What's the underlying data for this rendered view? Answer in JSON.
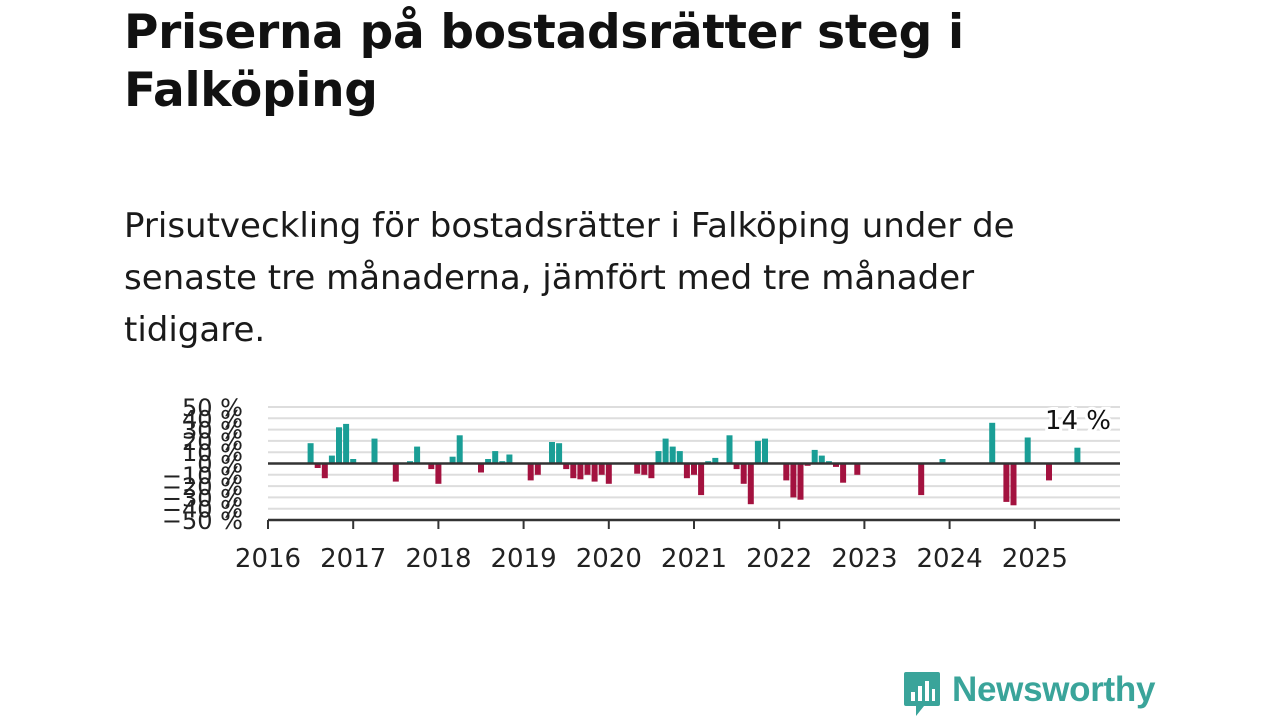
{
  "title": "Priserna på bostadsrätter steg i Falköping",
  "subtitle": "Prisutveckling för bostadsrätter i Falköping under de senaste tre månaderna, jämfört med tre månader tidigare.",
  "logo": {
    "text": "Newsworthy",
    "icon": "chart-bubble-icon",
    "color": "#3aa49a"
  },
  "colors": {
    "positive": "#1a9e96",
    "negative": "#a3123f",
    "baseline": "#333333",
    "grid": "#dddddd"
  },
  "chart_data": {
    "type": "bar",
    "title": "",
    "xlabel": "",
    "ylabel": "",
    "ylim": [
      -50,
      50
    ],
    "grid": true,
    "y_ticks": [
      "50 %",
      "40 %",
      "30 %",
      "20 %",
      "10 %",
      "0 %",
      "−10 %",
      "−20 %",
      "−30 %",
      "−40 %",
      "−50 %"
    ],
    "y_tick_values": [
      50,
      40,
      30,
      20,
      10,
      0,
      -10,
      -20,
      -30,
      -40,
      -50
    ],
    "x_ticks": [
      "2016",
      "2017",
      "2018",
      "2019",
      "2020",
      "2021",
      "2022",
      "2023",
      "2024",
      "2025"
    ],
    "x_tick_values": [
      2016,
      2017,
      2018,
      2019,
      2020,
      2021,
      2022,
      2023,
      2024,
      2025
    ],
    "xlim": [
      2016,
      2026
    ],
    "last_label": "14 %",
    "series": [
      {
        "x": [
          2016.5,
          2016.583,
          2016.667,
          2016.75,
          2016.833,
          2016.917,
          2017.0,
          2017.25,
          2017.5,
          2017.667,
          2017.75,
          2017.917,
          2018.0,
          2018.167,
          2018.25,
          2018.5,
          2018.583,
          2018.667,
          2018.75,
          2018.833,
          2019.083,
          2019.167,
          2019.333,
          2019.417,
          2019.5,
          2019.583,
          2019.667,
          2019.75,
          2019.833,
          2019.917,
          2020.0,
          2020.333,
          2020.417,
          2020.5,
          2020.583,
          2020.667,
          2020.75,
          2020.833,
          2020.917,
          2021.0,
          2021.083,
          2021.167,
          2021.25,
          2021.417,
          2021.5,
          2021.583,
          2021.667,
          2021.75,
          2021.833,
          2022.083,
          2022.167,
          2022.25,
          2022.333,
          2022.417,
          2022.5,
          2022.583,
          2022.667,
          2022.75,
          2022.917,
          2023.667,
          2023.917,
          2024.5,
          2024.667,
          2024.75,
          2024.917,
          2025.167,
          2025.5
        ],
        "values": [
          18,
          -4,
          -13,
          7,
          32,
          35,
          4,
          22,
          -16,
          2,
          15,
          -5,
          -18,
          6,
          25,
          -8,
          4,
          11,
          2,
          8,
          -15,
          -10,
          19,
          18,
          -5,
          -13,
          -14,
          -10,
          -16,
          -10,
          -18,
          -9,
          -10,
          -13,
          11,
          22,
          15,
          11,
          -13,
          -10,
          -28,
          2,
          5,
          25,
          -5,
          -18,
          -36,
          20,
          22,
          -15,
          -30,
          -32,
          -2,
          12,
          7,
          2,
          -3,
          -17,
          -10,
          -28,
          4,
          36,
          -34,
          -37,
          23,
          -15,
          14
        ]
      }
    ]
  }
}
